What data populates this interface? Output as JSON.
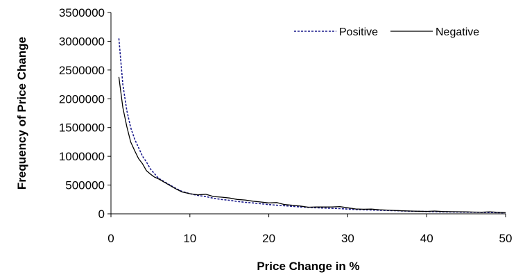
{
  "chart_data": {
    "type": "line",
    "title": "",
    "xlabel": "Price Change in %",
    "ylabel": "Frequency of Price Change",
    "xlim": [
      0,
      50
    ],
    "ylim": [
      0,
      3500000
    ],
    "x_ticks": [
      0,
      10,
      20,
      30,
      40,
      50
    ],
    "y_ticks": [
      0,
      500000,
      1000000,
      1500000,
      2000000,
      2500000,
      3000000,
      3500000
    ],
    "x_tick_labels": [
      "0",
      "10",
      "20",
      "30",
      "40",
      "50"
    ],
    "y_tick_labels": [
      "0",
      "500000",
      "1000000",
      "1500000",
      "2000000",
      "2500000",
      "3000000",
      "3500000"
    ],
    "grid": false,
    "legend_position": "top-right",
    "series": [
      {
        "name": "Positive",
        "color": "#1a1a8c",
        "style": "dotted",
        "x": [
          1,
          1.5,
          2,
          2.5,
          3,
          3.5,
          4,
          4.5,
          5,
          5.5,
          6,
          7,
          8,
          9,
          10,
          11,
          12,
          13,
          14,
          15,
          16,
          17,
          18,
          19,
          20,
          21,
          22,
          23,
          24,
          25,
          26,
          27,
          28,
          29,
          30,
          31,
          32,
          33,
          34,
          35,
          36,
          37,
          38,
          39,
          40,
          41,
          42,
          43,
          44,
          45,
          46,
          47,
          48,
          49,
          50
        ],
        "values": [
          3050000,
          2250000,
          1800000,
          1500000,
          1300000,
          1150000,
          1000000,
          900000,
          780000,
          700000,
          620000,
          540000,
          460000,
          390000,
          350000,
          320000,
          300000,
          270000,
          250000,
          235000,
          215000,
          200000,
          190000,
          175000,
          160000,
          150000,
          140000,
          130000,
          120000,
          112000,
          105000,
          100000,
          95000,
          90000,
          82000,
          75000,
          70000,
          66000,
          62000,
          58000,
          54000,
          50000,
          46000,
          43000,
          40000,
          37000,
          34000,
          32000,
          30000,
          28000,
          26000,
          24000,
          22000,
          20000,
          18000
        ]
      },
      {
        "name": "Negative",
        "color": "#000000",
        "style": "solid",
        "x": [
          1,
          1.5,
          2,
          2.5,
          3,
          3.5,
          4,
          4.5,
          5,
          5.5,
          6,
          7,
          8,
          9,
          10,
          11,
          12,
          13,
          14,
          15,
          16,
          17,
          18,
          19,
          20,
          21,
          22,
          23,
          24,
          25,
          26,
          27,
          28,
          29,
          30,
          31,
          32,
          33,
          34,
          35,
          36,
          37,
          38,
          39,
          40,
          41,
          42,
          43,
          44,
          45,
          46,
          47,
          48,
          49,
          50
        ],
        "values": [
          2380000,
          1850000,
          1520000,
          1250000,
          1100000,
          960000,
          870000,
          750000,
          690000,
          640000,
          610000,
          530000,
          450000,
          380000,
          350000,
          330000,
          340000,
          300000,
          290000,
          275000,
          250000,
          240000,
          220000,
          205000,
          190000,
          195000,
          160000,
          150000,
          135000,
          115000,
          120000,
          118000,
          120000,
          125000,
          105000,
          85000,
          80000,
          82000,
          70000,
          65000,
          58000,
          52000,
          48000,
          45000,
          42000,
          48000,
          40000,
          38000,
          36000,
          34000,
          30000,
          28000,
          35000,
          26000,
          20000
        ]
      }
    ]
  }
}
